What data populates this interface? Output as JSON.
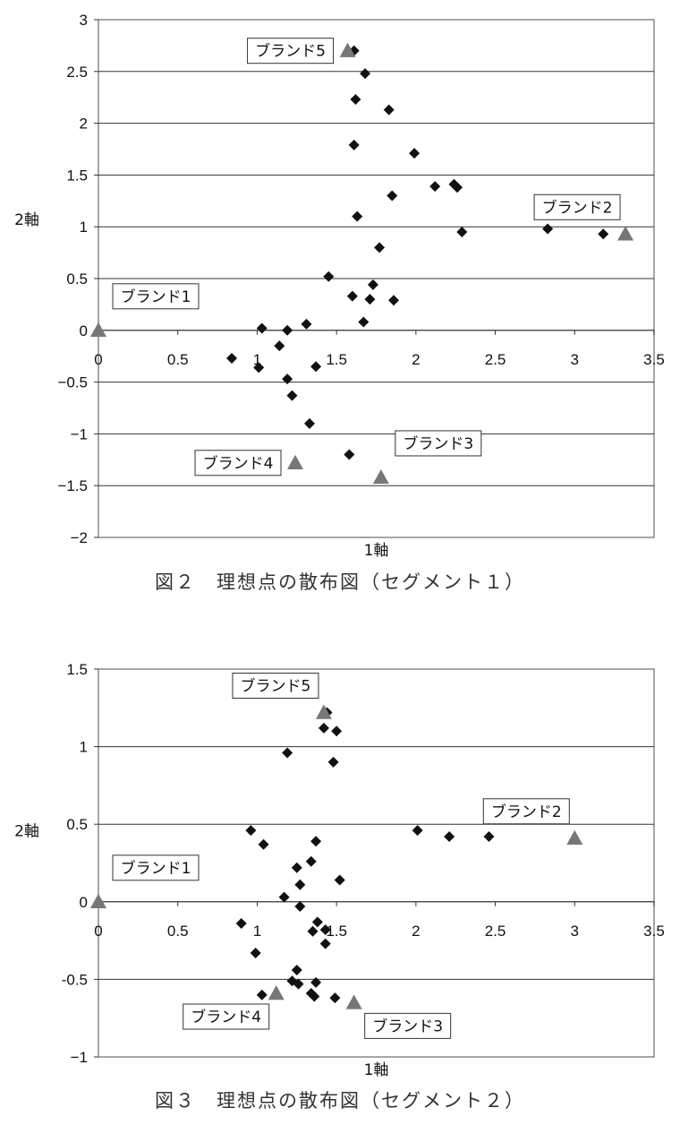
{
  "figures": [
    {
      "caption": "図２　理想点の散布図（セグメント１）",
      "chart_data": {
        "type": "scatter",
        "xlabel": "1軸",
        "ylabel": "2軸",
        "xlim": [
          0,
          3.5
        ],
        "ylim": [
          -2,
          3
        ],
        "xticks": [
          "0",
          "0.5",
          "1",
          "1.5",
          "2",
          "2.5",
          "3",
          "3.5"
        ],
        "yticks": [
          "−2",
          "−1.5",
          "−1",
          "−0.5",
          "0",
          "0.5",
          "1",
          "1.5",
          "2",
          "2.5",
          "3"
        ],
        "ytick_values": [
          -2,
          -1.5,
          -1,
          -0.5,
          0,
          0.5,
          1,
          1.5,
          2,
          2.5,
          3
        ],
        "xtick_values": [
          0,
          0.5,
          1,
          1.5,
          2,
          2.5,
          3,
          3.5
        ],
        "grid": "horizontal",
        "ideal_points": [
          [
            1.61,
            2.7
          ],
          [
            1.68,
            2.48
          ],
          [
            1.62,
            2.23
          ],
          [
            1.83,
            2.13
          ],
          [
            1.61,
            1.79
          ],
          [
            1.99,
            1.71
          ],
          [
            2.12,
            1.39
          ],
          [
            2.24,
            1.41
          ],
          [
            2.26,
            1.38
          ],
          [
            1.85,
            1.3
          ],
          [
            1.63,
            1.1
          ],
          [
            2.29,
            0.95
          ],
          [
            2.83,
            0.98
          ],
          [
            3.18,
            0.93
          ],
          [
            1.77,
            0.8
          ],
          [
            1.45,
            0.52
          ],
          [
            1.6,
            0.33
          ],
          [
            1.73,
            0.44
          ],
          [
            1.71,
            0.3
          ],
          [
            1.86,
            0.29
          ],
          [
            1.67,
            0.08
          ],
          [
            1.31,
            0.06
          ],
          [
            1.03,
            0.02
          ],
          [
            1.19,
            0.0
          ],
          [
            1.14,
            -0.15
          ],
          [
            0.84,
            -0.27
          ],
          [
            1.01,
            -0.36
          ],
          [
            1.37,
            -0.35
          ],
          [
            1.19,
            -0.47
          ],
          [
            1.22,
            -0.63
          ],
          [
            1.33,
            -0.9
          ],
          [
            1.58,
            -1.2
          ]
        ],
        "brands": [
          {
            "label": "ブランド1",
            "x": 0.0,
            "y": 0.0,
            "pos": "upper-right"
          },
          {
            "label": "ブランド2",
            "x": 3.32,
            "y": 0.93,
            "pos": "upper-left"
          },
          {
            "label": "ブランド3",
            "x": 1.78,
            "y": -1.42,
            "pos": "upper-right"
          },
          {
            "label": "ブランド4",
            "x": 1.24,
            "y": -1.28,
            "pos": "left"
          },
          {
            "label": "ブランド5",
            "x": 1.57,
            "y": 2.7,
            "pos": "left"
          }
        ]
      }
    },
    {
      "caption": "図３　理想点の散布図（セグメント２）",
      "chart_data": {
        "type": "scatter",
        "xlabel": "1軸",
        "ylabel": "2軸",
        "xlim": [
          0,
          3.5
        ],
        "ylim": [
          -1,
          1.5
        ],
        "xticks": [
          "0",
          "0.5",
          "1",
          "1.5",
          "2",
          "2.5",
          "3",
          "3.5"
        ],
        "yticks": [
          "−1",
          "-0.5",
          "0",
          "0.5",
          "1",
          "1.5"
        ],
        "ytick_values": [
          -1,
          -0.5,
          0,
          0.5,
          1,
          1.5
        ],
        "xtick_values": [
          0,
          0.5,
          1,
          1.5,
          2,
          2.5,
          3,
          3.5
        ],
        "grid": "horizontal",
        "ideal_points": [
          [
            1.44,
            1.22
          ],
          [
            1.42,
            1.12
          ],
          [
            1.5,
            1.1
          ],
          [
            1.19,
            0.96
          ],
          [
            1.48,
            0.9
          ],
          [
            0.96,
            0.46
          ],
          [
            1.04,
            0.37
          ],
          [
            1.37,
            0.39
          ],
          [
            2.01,
            0.46
          ],
          [
            2.21,
            0.42
          ],
          [
            2.46,
            0.42
          ],
          [
            1.25,
            0.22
          ],
          [
            1.34,
            0.26
          ],
          [
            1.27,
            0.11
          ],
          [
            1.52,
            0.14
          ],
          [
            1.17,
            0.03
          ],
          [
            1.27,
            -0.03
          ],
          [
            1.38,
            -0.13
          ],
          [
            1.35,
            -0.19
          ],
          [
            1.43,
            -0.18
          ],
          [
            0.9,
            -0.14
          ],
          [
            1.43,
            -0.27
          ],
          [
            0.99,
            -0.33
          ],
          [
            1.25,
            -0.44
          ],
          [
            1.22,
            -0.51
          ],
          [
            1.26,
            -0.53
          ],
          [
            1.37,
            -0.52
          ],
          [
            1.34,
            -0.59
          ],
          [
            1.36,
            -0.61
          ],
          [
            1.49,
            -0.62
          ],
          [
            1.03,
            -0.6
          ]
        ],
        "brands": [
          {
            "label": "ブランド1",
            "x": 0.0,
            "y": 0.0,
            "pos": "upper-right"
          },
          {
            "label": "ブランド2",
            "x": 3.0,
            "y": 0.41,
            "pos": "upper-left"
          },
          {
            "label": "ブランド3",
            "x": 1.61,
            "y": -0.65,
            "pos": "lower-right"
          },
          {
            "label": "ブランド4",
            "x": 1.12,
            "y": -0.59,
            "pos": "lower-left"
          },
          {
            "label": "ブランド5",
            "x": 1.42,
            "y": 1.22,
            "pos": "upper-left"
          }
        ]
      }
    }
  ]
}
